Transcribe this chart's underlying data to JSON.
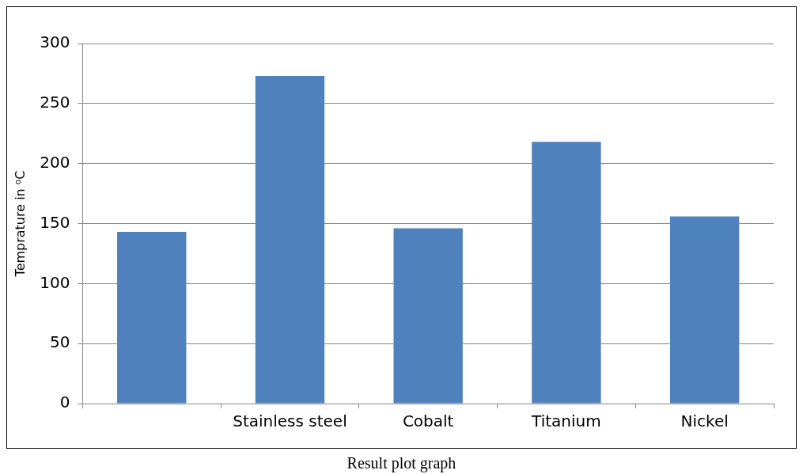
{
  "chart_data": {
    "type": "bar",
    "ylabel": "Temprature in ⁰C",
    "annotations": [
      "Result plot graph"
    ],
    "categories": [
      null,
      "Stainless steel",
      "Cobalt",
      "Titanium",
      "Nickel"
    ],
    "values": [
      143,
      273,
      146,
      218,
      156
    ],
    "color": "#4f81bd",
    "ylim": [
      0,
      300
    ],
    "yticks": [
      0,
      50,
      100,
      150,
      200,
      250,
      300
    ],
    "grid": "y",
    "legend": false
  }
}
